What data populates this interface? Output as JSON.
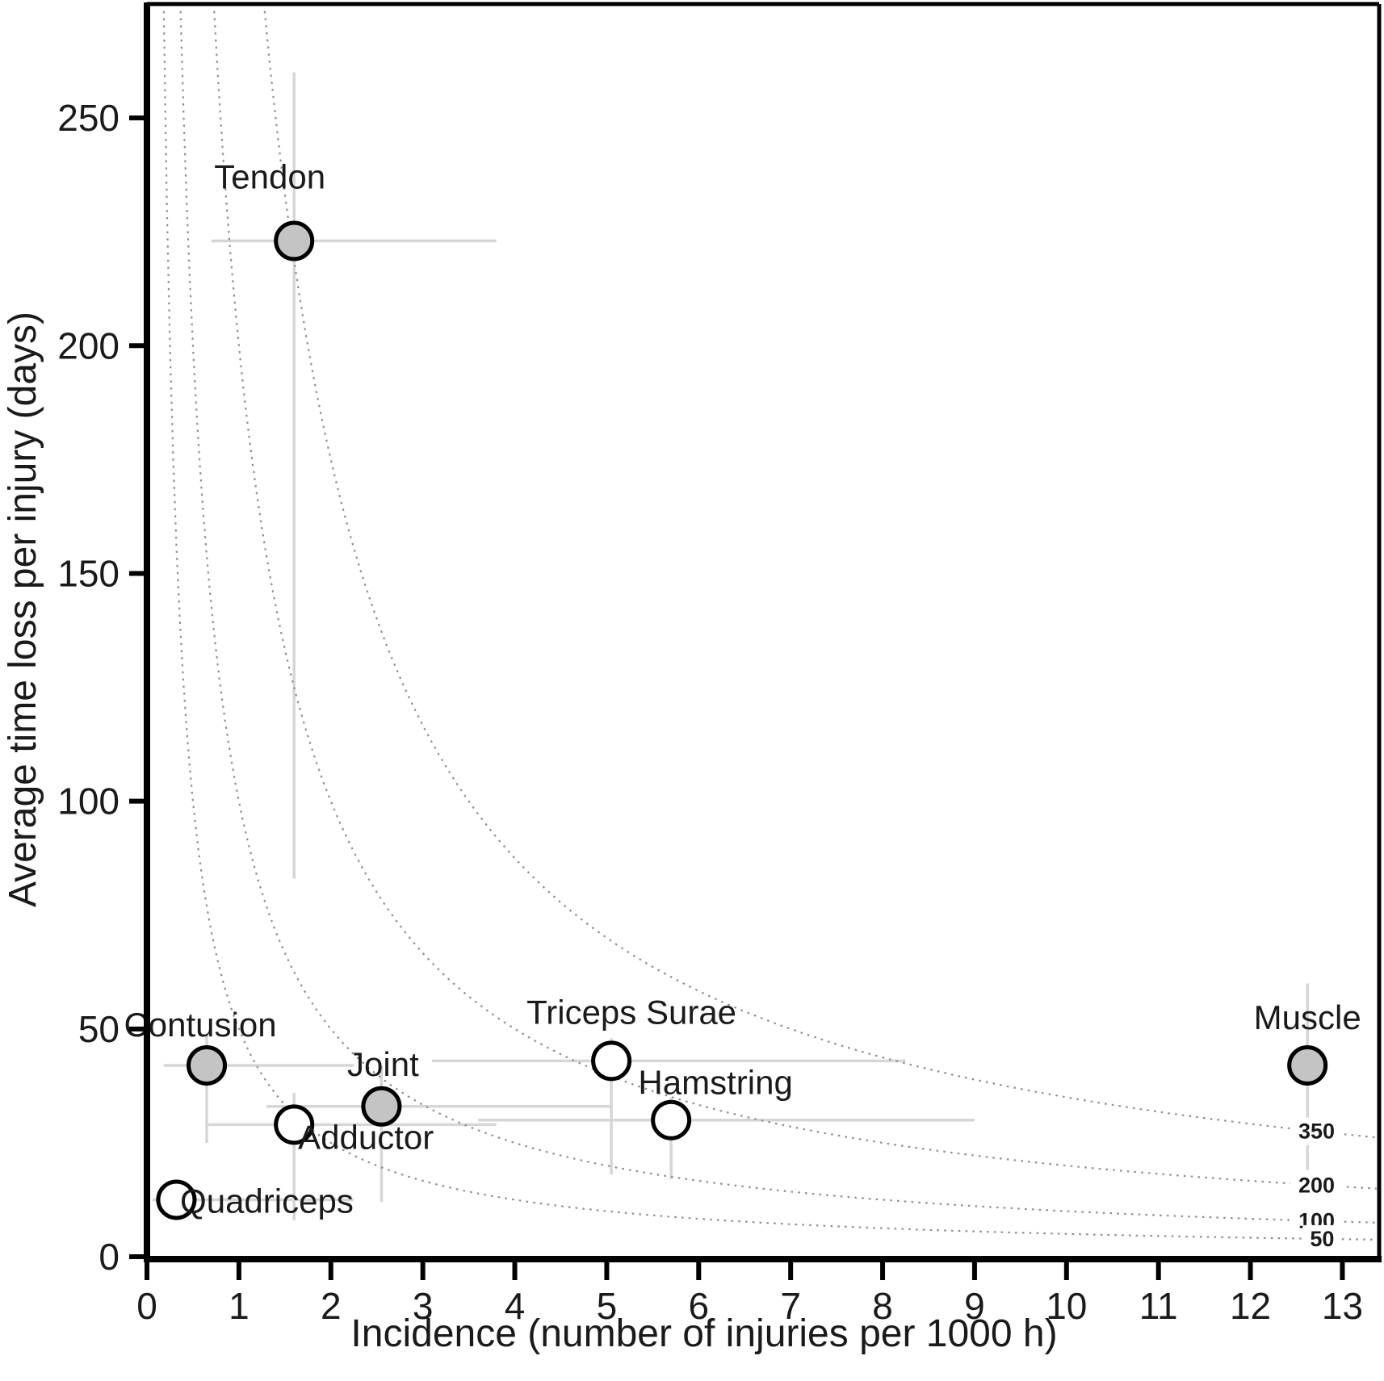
{
  "chart_data": {
    "type": "scatter",
    "title": "",
    "xlabel": "Incidence (number of injuries per 1000 h)",
    "ylabel": "Average time loss per injury (days)",
    "xlim": [
      0,
      13.4
    ],
    "ylim": [
      0,
      275
    ],
    "xticks": [
      0,
      1,
      2,
      3,
      4,
      5,
      6,
      7,
      8,
      9,
      10,
      11,
      12,
      13
    ],
    "yticks": [
      0,
      50,
      100,
      150,
      200,
      250
    ],
    "grid": false,
    "legend": "none",
    "iso_burden_curves": {
      "description": "dotted hyperbolas y = burden / x (days lost per 1000 h)",
      "values": [
        350,
        200,
        100,
        50
      ],
      "labels": [
        "350",
        "200",
        "100",
        "50"
      ],
      "label_x": [
        12.72,
        12.72,
        12.72,
        12.78
      ],
      "style": "dotted"
    },
    "points": [
      {
        "label": "Tendon",
        "x": 1.6,
        "y": 223,
        "fill": "gray",
        "xerr": [
          0.7,
          3.8
        ],
        "yerr": [
          83,
          260
        ],
        "label_offset": [
          -30,
          -65
        ]
      },
      {
        "label": "Contusion",
        "x": 0.65,
        "y": 42,
        "fill": "gray",
        "xerr": [
          0.18,
          2.25
        ],
        "yerr": [
          25,
          49
        ],
        "label_offset": [
          -8,
          -36
        ]
      },
      {
        "label": "Joint",
        "x": 2.55,
        "y": 33,
        "fill": "gray",
        "xerr": [
          1.3,
          5.05
        ],
        "yerr": [
          12,
          42
        ],
        "label_offset": [
          2,
          -38
        ]
      },
      {
        "label": "Adductor",
        "x": 1.6,
        "y": 29,
        "fill": "white",
        "xerr": [
          0.65,
          3.8
        ],
        "yerr": [
          8,
          36
        ],
        "label_offset": [
          89,
          30
        ]
      },
      {
        "label": "Quadriceps",
        "x": 0.32,
        "y": 12.5,
        "fill": "white",
        "xerr": [
          0.06,
          2.25
        ],
        "yerr": null,
        "label_offset": [
          112,
          16
        ]
      },
      {
        "label": "Triceps Surae",
        "x": 5.05,
        "y": 43,
        "fill": "white",
        "xerr": [
          3.1,
          8.25
        ],
        "yerr": [
          18,
          48
        ],
        "label_offset": [
          25,
          -46
        ]
      },
      {
        "label": "Hamstring",
        "x": 5.7,
        "y": 30,
        "fill": "white",
        "xerr": [
          3.6,
          9.0
        ],
        "yerr": [
          17,
          35
        ],
        "label_offset": [
          55,
          -32
        ]
      },
      {
        "label": "Muscle",
        "x": 12.62,
        "y": 42,
        "fill": "gray",
        "xerr": null,
        "yerr": [
          19,
          60
        ],
        "label_offset": [
          0,
          -45
        ]
      }
    ],
    "colors": {
      "point_fill_gray": "#c4c4c4",
      "point_fill_white": "#ffffff",
      "point_stroke": "#000000",
      "error_bar": "#d6d6d6",
      "curve": "#8f8f8f",
      "axis": "#000000",
      "text": "#1a1a1a"
    }
  }
}
